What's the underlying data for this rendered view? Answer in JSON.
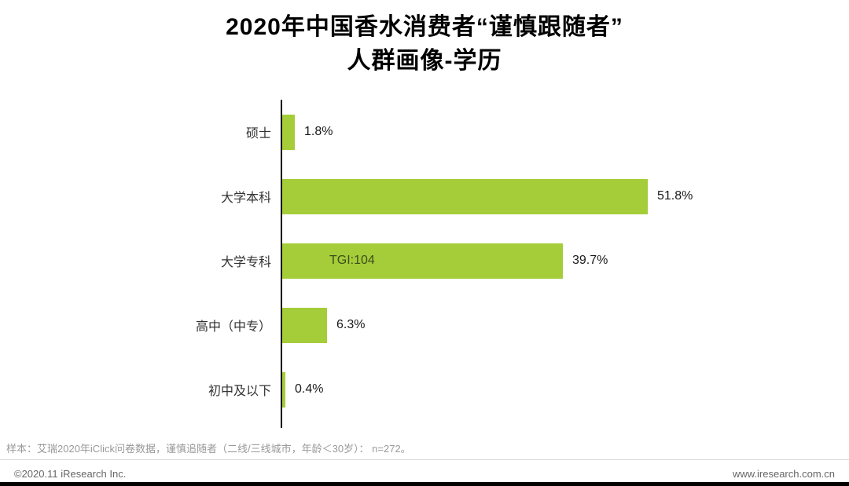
{
  "title": {
    "lines": [
      "2020年中国香水消费者“谨慎跟随者”",
      "人群画像-学历"
    ]
  },
  "chart_data": {
    "type": "bar",
    "orientation": "horizontal",
    "title": "2020年中国香水消费者“谨慎跟随者”人群画像-学历",
    "categories": [
      "硕士",
      "大学本科",
      "大学专科",
      "高中（中专）",
      "初中及以下"
    ],
    "values": [
      1.8,
      51.8,
      39.7,
      6.3,
      0.4
    ],
    "value_labels": [
      "1.8%",
      "51.8%",
      "39.7%",
      "6.3%",
      "0.4%"
    ],
    "annotations": [
      null,
      null,
      "TGI:104",
      null,
      null
    ],
    "xlim": [
      0,
      55
    ],
    "xlabel": "",
    "ylabel": "",
    "legend": "none",
    "grid": "off"
  },
  "colors": {
    "bar": "#a5cd39",
    "tgi_text": "#3c4d1d"
  },
  "footnote": "样本：艾瑞2020年iClick问卷数据，谨慎追随者（二线/三线城市，年龄＜30岁）： n=272。",
  "footer": {
    "copyright": "©2020.11 iResearch Inc.",
    "website": "www.iresearch.com.cn"
  }
}
